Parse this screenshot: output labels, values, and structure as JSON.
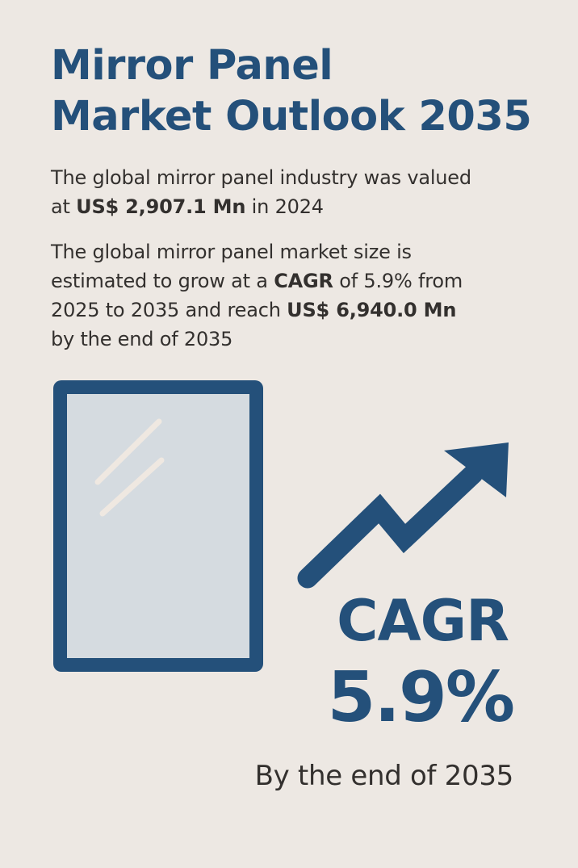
{
  "colors": {
    "background": "#ede8e3",
    "primary": "#24507a",
    "text": "#33302e",
    "glass": "#d5dbe0",
    "glare": "#efe8e1"
  },
  "title": {
    "line1": "Mirror Panel",
    "line2": "Market Outlook 2035"
  },
  "paragraph1": {
    "line1": "The global mirror panel industry was valued",
    "line2_pre": "at ",
    "value_2024": "US$ 2,907.1 Mn",
    "line2_post": " in 2024"
  },
  "paragraph2": {
    "line1": "The global mirror panel market size is",
    "line2_pre": "estimated to grow at a ",
    "cagr_word": "CAGR",
    "line2_post": " of 5.9% from",
    "line3_pre": "2025 to 2035 and reach ",
    "value_2035": "US$ 6,940.0 Mn",
    "line4": "by the end of 2035"
  },
  "icons": {
    "mirror": "mirror-panel-icon",
    "growth": "trend-up-arrow-icon"
  },
  "highlight": {
    "label": "CAGR",
    "value": "5.9%",
    "footnote": "By the end of 2035"
  }
}
